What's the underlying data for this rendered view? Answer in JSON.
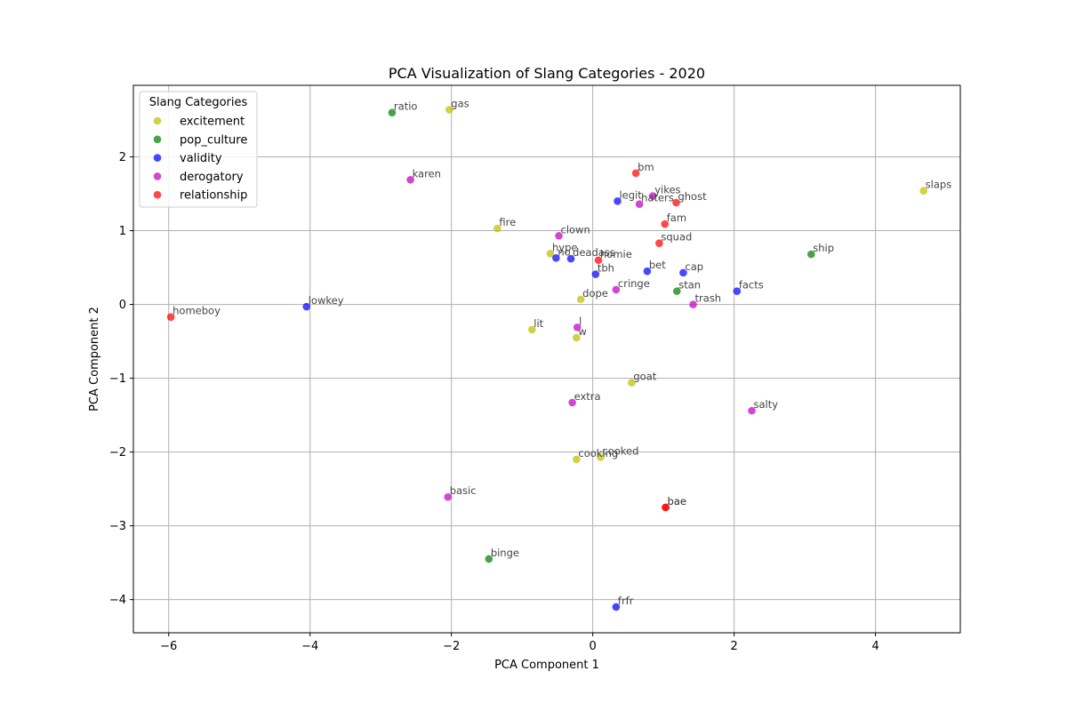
{
  "chart_data": {
    "type": "scatter",
    "title": "PCA Visualization of Slang Categories - 2020",
    "xlabel": "PCA Component 1",
    "ylabel": "PCA Component 2",
    "xlim": [
      -6.5,
      5.2
    ],
    "ylim": [
      -4.45,
      2.97
    ],
    "xticks": [
      -6,
      -4,
      -2,
      0,
      2,
      4
    ],
    "yticks": [
      -4,
      -3,
      -2,
      -1,
      0,
      1,
      2
    ],
    "xtick_labels": [
      "−6",
      "−4",
      "−2",
      "0",
      "2",
      "4"
    ],
    "ytick_labels": [
      "−4",
      "−3",
      "−2",
      "−1",
      "0",
      "1",
      "2"
    ],
    "grid": true,
    "legend": {
      "title": "Slang Categories",
      "location": "upper-left"
    },
    "series": [
      {
        "name": "excitement",
        "color": "#bfbf00",
        "points": [
          {
            "label": "gas",
            "x": -2.03,
            "y": 2.64
          },
          {
            "label": "fire",
            "x": -1.35,
            "y": 1.03
          },
          {
            "label": "hype",
            "x": -0.6,
            "y": 0.69
          },
          {
            "label": "dope",
            "x": -0.17,
            "y": 0.07
          },
          {
            "label": "lit",
            "x": -0.86,
            "y": -0.34
          },
          {
            "label": "w",
            "x": -0.23,
            "y": -0.45
          },
          {
            "label": "goat",
            "x": 0.55,
            "y": -1.06
          },
          {
            "label": "cooking",
            "x": -0.23,
            "y": -2.1
          },
          {
            "label": "cooked",
            "x": 0.11,
            "y": -2.07
          },
          {
            "label": "slaps",
            "x": 4.68,
            "y": 1.54
          }
        ]
      },
      {
        "name": "pop_culture",
        "color": "#008000",
        "points": [
          {
            "label": "ratio",
            "x": -2.84,
            "y": 2.6
          },
          {
            "label": "stan",
            "x": 1.19,
            "y": 0.18
          },
          {
            "label": "ship",
            "x": 3.09,
            "y": 0.68
          },
          {
            "label": "binge",
            "x": -1.47,
            "y": -3.45
          }
        ]
      },
      {
        "name": "validity",
        "color": "#0000ff",
        "points": [
          {
            "label": "legit",
            "x": 0.35,
            "y": 1.4
          },
          {
            "label": "no",
            "x": -0.52,
            "y": 0.63
          },
          {
            "label": "deadass",
            "x": -0.31,
            "y": 0.62
          },
          {
            "label": "tbh",
            "x": 0.04,
            "y": 0.41
          },
          {
            "label": "bet",
            "x": 0.77,
            "y": 0.45
          },
          {
            "label": "cap",
            "x": 1.28,
            "y": 0.43
          },
          {
            "label": "facts",
            "x": 2.04,
            "y": 0.18
          },
          {
            "label": "lowkey",
            "x": -4.05,
            "y": -0.03
          },
          {
            "label": "frfr",
            "x": 0.33,
            "y": -4.1
          }
        ]
      },
      {
        "name": "derogatory",
        "color": "#bf00bf",
        "points": [
          {
            "label": "karen",
            "x": -2.58,
            "y": 1.69
          },
          {
            "label": "yikes",
            "x": 0.85,
            "y": 1.47
          },
          {
            "label": "haters",
            "x": 0.66,
            "y": 1.36
          },
          {
            "label": "clown",
            "x": -0.48,
            "y": 0.93
          },
          {
            "label": "cringe",
            "x": 0.33,
            "y": 0.2
          },
          {
            "label": "trash",
            "x": 1.42,
            "y": 0.0
          },
          {
            "label": "l",
            "x": -0.22,
            "y": -0.31
          },
          {
            "label": "extra",
            "x": -0.29,
            "y": -1.33
          },
          {
            "label": "salty",
            "x": 2.25,
            "y": -1.44
          },
          {
            "label": "basic",
            "x": -2.05,
            "y": -2.61
          }
        ]
      },
      {
        "name": "relationship",
        "color": "#ff0000",
        "points": [
          {
            "label": "bm",
            "x": 0.61,
            "y": 1.78
          },
          {
            "label": "ghost",
            "x": 1.18,
            "y": 1.38
          },
          {
            "label": "fam",
            "x": 1.02,
            "y": 1.09
          },
          {
            "label": "squad",
            "x": 0.94,
            "y": 0.83
          },
          {
            "label": "homie",
            "x": 0.08,
            "y": 0.6
          },
          {
            "label": "homeboy",
            "x": -5.97,
            "y": -0.17
          },
          {
            "label": "bae",
            "x": 1.03,
            "y": -2.75
          },
          {
            "label": "bae",
            "x": 1.03,
            "y": -2.75
          }
        ]
      }
    ]
  }
}
